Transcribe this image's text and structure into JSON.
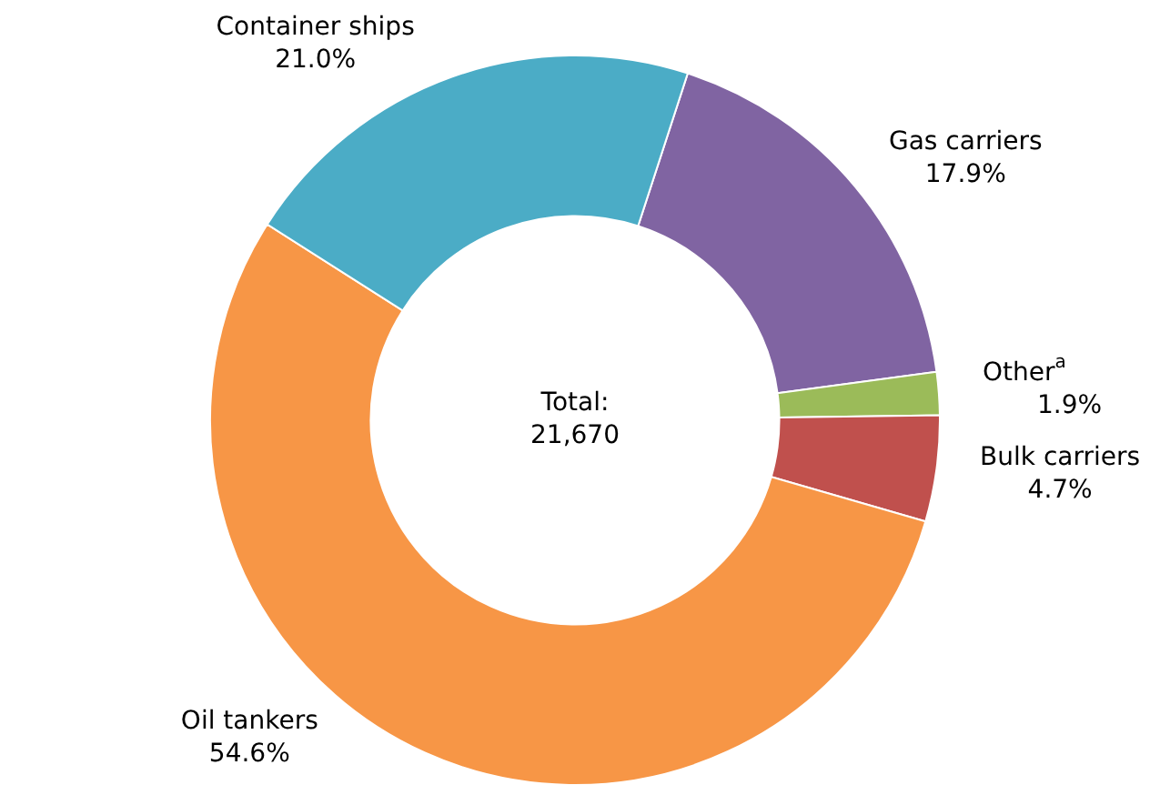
{
  "chart_data": {
    "type": "donut",
    "categories": [
      "Gas carriers",
      "Other$^{a}$",
      "Bulk carriers",
      "Oil tankers",
      "Container ships"
    ],
    "values": [
      17.9,
      1.9,
      4.7,
      54.6,
      21.0
    ],
    "value_labels": [
      "17.9%",
      "1.9%",
      "4.7%",
      "54.6%",
      "21.0%"
    ],
    "colors": [
      "#8064a2",
      "#9bbb59",
      "#c0504d",
      "#f79646",
      "#4bacc6"
    ],
    "annotations": [
      "Total:",
      "21,670"
    ],
    "legend": false
  }
}
